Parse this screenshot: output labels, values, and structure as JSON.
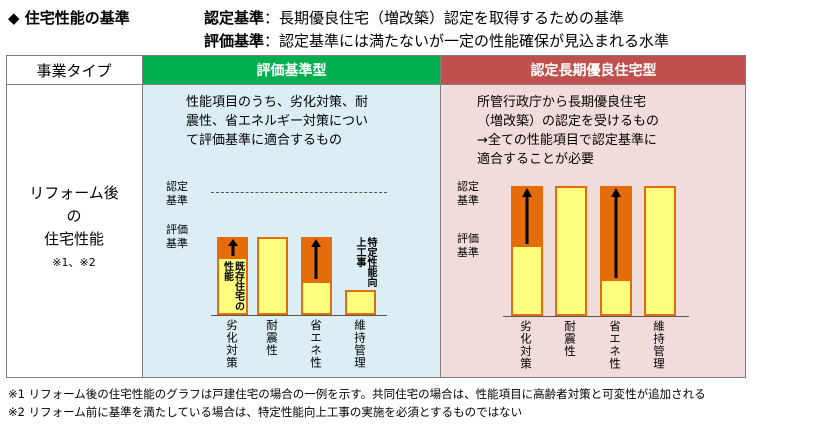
{
  "header": {
    "title": "◆ 住宅性能の基準",
    "defs": [
      {
        "term": "認定基準",
        "sep": "：",
        "text": "長期優良住宅（増改築）認定を取得するための基準"
      },
      {
        "term": "評価基準",
        "sep": "：",
        "text": "認定基準には満たないが一定の性能確保が見込まれる水準"
      }
    ]
  },
  "table": {
    "corner": "事業タイプ",
    "row_label": [
      "リフォーム後",
      "の",
      "住宅性能"
    ],
    "row_note": "※1、※2",
    "columns": [
      {
        "title": "評価基準型",
        "desc": [
          "性能項目のうち、劣化対策、耐",
          "震性、省エネルギー対策につい",
          "て評価基準に適合するもの"
        ],
        "y_labels": {
          "nintei": [
            "認定",
            "基準"
          ],
          "hyouka": [
            "評価",
            "基準"
          ]
        },
        "bar_texts": {
          "existing": "既存住宅の性能",
          "special": "特定性能向上工事"
        },
        "categories": [
          "劣化対策",
          "耐震性",
          "省エネ性",
          "維持管理"
        ]
      },
      {
        "title": "認定長期優良住宅型",
        "desc": [
          "所管行政庁から長期優良住宅",
          "（増改築）の認定を受けるもの",
          "→全ての性能項目で認定基準に",
          "適合することが必要"
        ],
        "y_labels": {
          "nintei": [
            "認定",
            "基準"
          ],
          "hyouka": [
            "評価",
            "基準"
          ]
        },
        "categories": [
          "劣化対策",
          "耐震性",
          "省エネ性",
          "維持管理"
        ]
      }
    ]
  },
  "notes": [
    "※1 リフォーム後の住宅性能のグラフは戸建住宅の場合の一例を示す。共同住宅の場合は、性能項目に高齢者対策と可変性が追加される",
    "※2 リフォーム前に基準を満たしている場合は、特定性能向上工事の実施を必須とするものではない"
  ],
  "colors": {
    "green": "#00b050",
    "red": "#c0504d",
    "green_bg": "#daeef3",
    "red_bg": "#f2dcdb",
    "orange": "#e46c0a",
    "yellow": "#ffff80"
  }
}
